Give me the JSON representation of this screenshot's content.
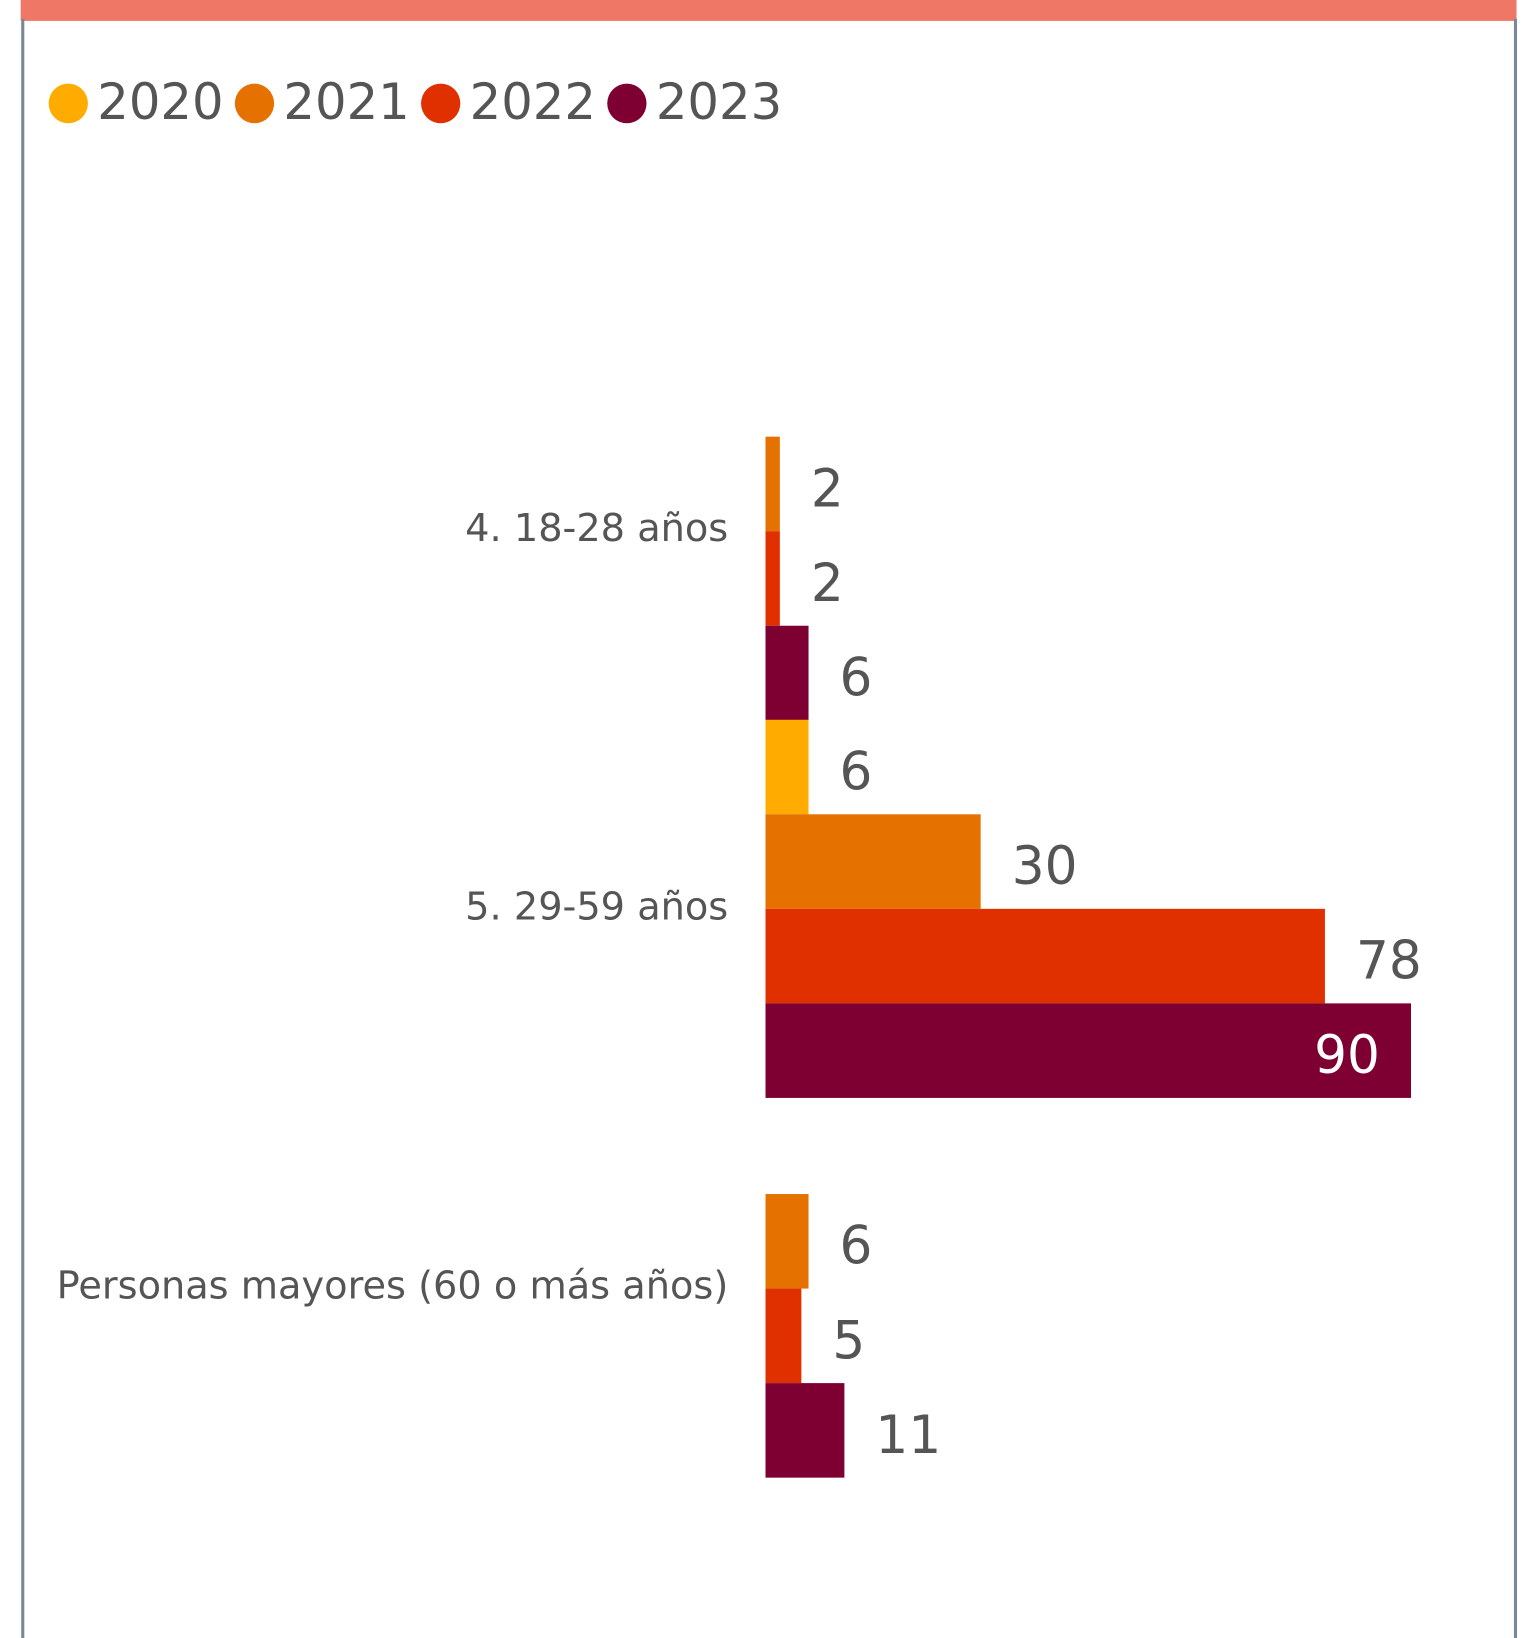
{
  "chart_data": {
    "type": "bar",
    "orientation": "horizontal",
    "categories": [
      "4. 18-28 años",
      "5. 29-59 años",
      "Personas mayores (60 o más años)"
    ],
    "series": [
      {
        "name": "2020",
        "color": "#FFAB00",
        "values": [
          null,
          6,
          null
        ]
      },
      {
        "name": "2021",
        "color": "#E57200",
        "values": [
          2,
          30,
          6
        ]
      },
      {
        "name": "2022",
        "color": "#E03000",
        "values": [
          2,
          78,
          5
        ]
      },
      {
        "name": "2023",
        "color": "#7E0033",
        "values": [
          6,
          90,
          11
        ]
      }
    ],
    "legend": "top-left"
  }
}
